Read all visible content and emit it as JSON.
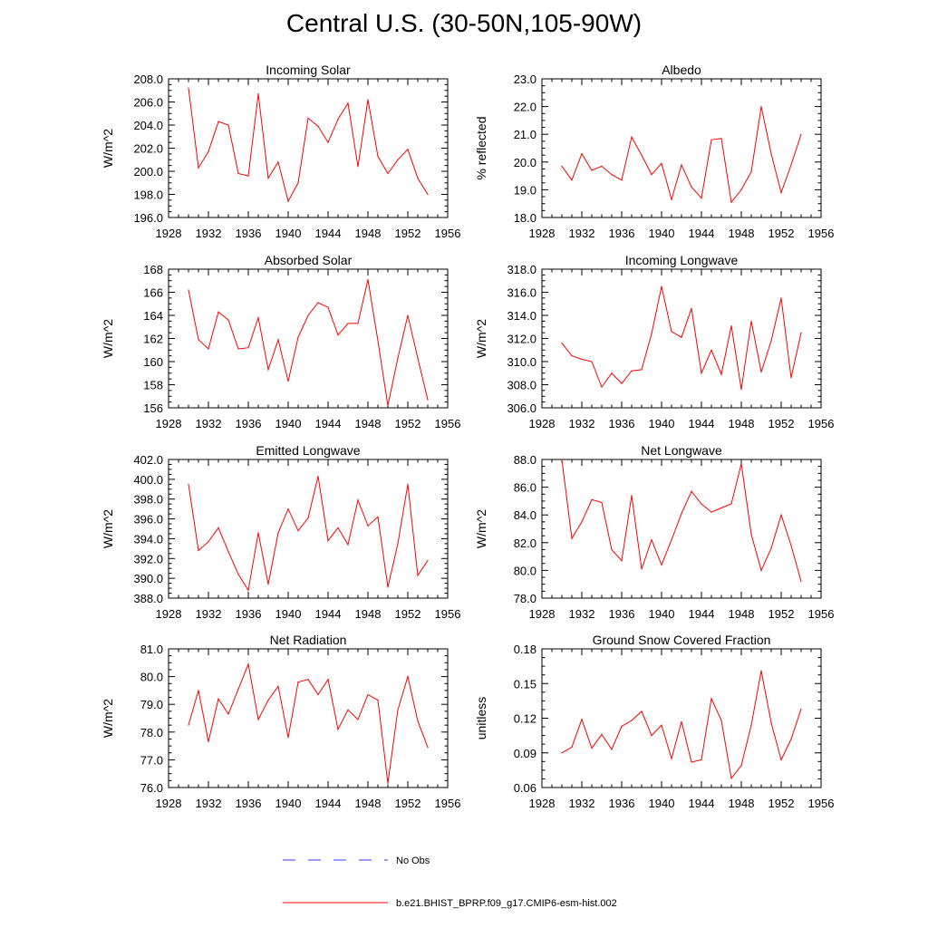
{
  "page_title": "Central U.S. (30-50N,105-90W)",
  "colors": {
    "model_line": "#ff0000",
    "obs_line": "#3a3aff",
    "axis": "#000000"
  },
  "legend": {
    "obs_label": "No Obs",
    "model_label": "b.e21.BHIST_BPRP.f09_g17.CMIP6-esm-hist.002"
  },
  "chart_data": [
    {
      "type": "line",
      "title": "Incoming Solar",
      "ylabel": "W/m^2",
      "xlabel": "",
      "xlim": [
        1928,
        1956
      ],
      "xticks": [
        1928,
        1932,
        1936,
        1940,
        1944,
        1948,
        1952,
        1956
      ],
      "ylim": [
        196,
        208
      ],
      "yticks": [
        196,
        198,
        200,
        202,
        204,
        206,
        208
      ],
      "ydecimals": 1,
      "x": [
        1930,
        1931,
        1932,
        1933,
        1934,
        1935,
        1936,
        1937,
        1938,
        1939,
        1940,
        1941,
        1942,
        1943,
        1944,
        1945,
        1946,
        1947,
        1948,
        1949,
        1950,
        1951,
        1952,
        1953,
        1954
      ],
      "series": [
        {
          "name": "b.e21.BHIST_BPRP.f09_g17.CMIP6-esm-hist.002",
          "values": [
            207.2,
            200.3,
            201.7,
            204.3,
            204.0,
            199.8,
            199.6,
            206.7,
            199.4,
            200.8,
            197.4,
            199.0,
            204.6,
            203.9,
            202.5,
            204.5,
            205.9,
            200.4,
            206.2,
            201.3,
            199.8,
            201.0,
            201.9,
            199.4,
            198.0
          ]
        }
      ]
    },
    {
      "type": "line",
      "title": "Albedo",
      "ylabel": "% reflected",
      "xlabel": "",
      "xlim": [
        1928,
        1956
      ],
      "xticks": [
        1928,
        1932,
        1936,
        1940,
        1944,
        1948,
        1952,
        1956
      ],
      "ylim": [
        18,
        23
      ],
      "yticks": [
        18,
        19,
        20,
        21,
        22,
        23
      ],
      "ydecimals": 1,
      "x": [
        1930,
        1931,
        1932,
        1933,
        1934,
        1935,
        1936,
        1937,
        1938,
        1939,
        1940,
        1941,
        1942,
        1943,
        1944,
        1945,
        1946,
        1947,
        1948,
        1949,
        1950,
        1951,
        1952,
        1953,
        1954
      ],
      "series": [
        {
          "name": "b.e21.BHIST_BPRP.f09_g17.CMIP6-esm-hist.002",
          "values": [
            19.85,
            19.35,
            20.3,
            19.7,
            19.85,
            19.55,
            19.35,
            20.9,
            20.25,
            19.55,
            19.95,
            18.65,
            19.9,
            19.1,
            18.7,
            20.8,
            20.85,
            18.55,
            19.0,
            19.65,
            22.0,
            20.3,
            18.9,
            19.9,
            21.0
          ]
        }
      ]
    },
    {
      "type": "line",
      "title": "Absorbed Solar",
      "ylabel": "W/m^2",
      "xlabel": "",
      "xlim": [
        1928,
        1956
      ],
      "xticks": [
        1928,
        1932,
        1936,
        1940,
        1944,
        1948,
        1952,
        1956
      ],
      "ylim": [
        156,
        168
      ],
      "yticks": [
        156,
        158,
        160,
        162,
        164,
        166,
        168
      ],
      "ydecimals": 0,
      "x": [
        1930,
        1931,
        1932,
        1933,
        1934,
        1935,
        1936,
        1937,
        1938,
        1939,
        1940,
        1941,
        1942,
        1943,
        1944,
        1945,
        1946,
        1947,
        1948,
        1949,
        1950,
        1951,
        1952,
        1953,
        1954
      ],
      "series": [
        {
          "name": "b.e21.BHIST_BPRP.f09_g17.CMIP6-esm-hist.002",
          "values": [
            166.2,
            161.9,
            161.1,
            164.3,
            163.6,
            161.1,
            161.2,
            163.8,
            159.3,
            161.9,
            158.3,
            162.1,
            164.0,
            165.1,
            164.7,
            162.3,
            163.3,
            163.3,
            167.1,
            161.8,
            156.2,
            160.3,
            164.0,
            160.3,
            156.7
          ]
        }
      ]
    },
    {
      "type": "line",
      "title": "Incoming Longwave",
      "ylabel": "W/m^2",
      "xlabel": "",
      "xlim": [
        1928,
        1956
      ],
      "xticks": [
        1928,
        1932,
        1936,
        1940,
        1944,
        1948,
        1952,
        1956
      ],
      "ylim": [
        306,
        318
      ],
      "yticks": [
        306,
        308,
        310,
        312,
        314,
        316,
        318
      ],
      "ydecimals": 1,
      "x": [
        1930,
        1931,
        1932,
        1933,
        1934,
        1935,
        1936,
        1937,
        1938,
        1939,
        1940,
        1941,
        1942,
        1943,
        1944,
        1945,
        1946,
        1947,
        1948,
        1949,
        1950,
        1951,
        1952,
        1953,
        1954
      ],
      "series": [
        {
          "name": "b.e21.BHIST_BPRP.f09_g17.CMIP6-esm-hist.002",
          "values": [
            311.6,
            310.5,
            310.2,
            310.0,
            307.8,
            309.0,
            308.1,
            309.2,
            309.3,
            312.4,
            316.5,
            312.6,
            312.1,
            314.6,
            309.0,
            311.0,
            308.9,
            313.1,
            307.6,
            313.5,
            309.1,
            311.8,
            315.5,
            308.6,
            312.5
          ]
        }
      ]
    },
    {
      "type": "line",
      "title": "Emitted Longwave",
      "ylabel": "W/m^2",
      "xlabel": "",
      "xlim": [
        1928,
        1956
      ],
      "xticks": [
        1928,
        1932,
        1936,
        1940,
        1944,
        1948,
        1952,
        1956
      ],
      "ylim": [
        388,
        402
      ],
      "yticks": [
        388,
        390,
        392,
        394,
        396,
        398,
        400,
        402
      ],
      "ydecimals": 1,
      "x": [
        1930,
        1931,
        1932,
        1933,
        1934,
        1935,
        1936,
        1937,
        1938,
        1939,
        1940,
        1941,
        1942,
        1943,
        1944,
        1945,
        1946,
        1947,
        1948,
        1949,
        1950,
        1951,
        1952,
        1953,
        1954
      ],
      "series": [
        {
          "name": "b.e21.BHIST_BPRP.f09_g17.CMIP6-esm-hist.002",
          "values": [
            399.5,
            392.8,
            393.7,
            395.1,
            392.7,
            390.4,
            388.8,
            394.6,
            389.4,
            394.6,
            397.0,
            394.8,
            396.1,
            400.3,
            393.8,
            395.1,
            393.4,
            397.9,
            395.3,
            396.2,
            389.1,
            393.5,
            399.5,
            390.3,
            391.8
          ]
        }
      ]
    },
    {
      "type": "line",
      "title": "Net Longwave",
      "ylabel": "W/m^2",
      "xlabel": "",
      "xlim": [
        1928,
        1956
      ],
      "xticks": [
        1928,
        1932,
        1936,
        1940,
        1944,
        1948,
        1952,
        1956
      ],
      "ylim": [
        78,
        88
      ],
      "yticks": [
        78,
        80,
        82,
        84,
        86,
        88
      ],
      "ydecimals": 1,
      "x": [
        1930,
        1931,
        1932,
        1933,
        1934,
        1935,
        1936,
        1937,
        1938,
        1939,
        1940,
        1941,
        1942,
        1943,
        1944,
        1945,
        1946,
        1947,
        1948,
        1949,
        1950,
        1951,
        1952,
        1953,
        1954
      ],
      "series": [
        {
          "name": "b.e21.BHIST_BPRP.f09_g17.CMIP6-esm-hist.002",
          "values": [
            88.0,
            82.3,
            83.5,
            85.1,
            84.9,
            81.5,
            80.7,
            85.4,
            80.1,
            82.2,
            80.4,
            82.2,
            84.1,
            85.7,
            84.8,
            84.2,
            84.5,
            84.8,
            87.7,
            82.6,
            80.0,
            81.6,
            84.0,
            81.8,
            79.2
          ]
        }
      ]
    },
    {
      "type": "line",
      "title": "Net Radiation",
      "ylabel": "W/m^2",
      "xlabel": "",
      "xlim": [
        1928,
        1956
      ],
      "xticks": [
        1928,
        1932,
        1936,
        1940,
        1944,
        1948,
        1952,
        1956
      ],
      "ylim": [
        76,
        81
      ],
      "yticks": [
        76,
        77,
        78,
        79,
        80,
        81
      ],
      "ydecimals": 1,
      "x": [
        1930,
        1931,
        1932,
        1933,
        1934,
        1935,
        1936,
        1937,
        1938,
        1939,
        1940,
        1941,
        1942,
        1943,
        1944,
        1945,
        1946,
        1947,
        1948,
        1949,
        1950,
        1951,
        1952,
        1953,
        1954
      ],
      "series": [
        {
          "name": "b.e21.BHIST_BPRP.f09_g17.CMIP6-esm-hist.002",
          "values": [
            78.25,
            79.5,
            77.65,
            79.2,
            78.65,
            79.55,
            80.45,
            78.45,
            79.15,
            79.65,
            77.8,
            79.8,
            79.9,
            79.35,
            79.9,
            78.1,
            78.8,
            78.45,
            79.35,
            79.15,
            76.15,
            78.8,
            80.0,
            78.4,
            77.45
          ]
        }
      ]
    },
    {
      "type": "line",
      "title": "Ground Snow Covered Fraction",
      "ylabel": "unitless",
      "xlabel": "",
      "xlim": [
        1928,
        1956
      ],
      "xticks": [
        1928,
        1932,
        1936,
        1940,
        1944,
        1948,
        1952,
        1956
      ],
      "ylim": [
        0.06,
        0.18
      ],
      "yticks": [
        0.06,
        0.09,
        0.12,
        0.15,
        0.18
      ],
      "ydecimals": 2,
      "x": [
        1930,
        1931,
        1932,
        1933,
        1934,
        1935,
        1936,
        1937,
        1938,
        1939,
        1940,
        1941,
        1942,
        1943,
        1944,
        1945,
        1946,
        1947,
        1948,
        1949,
        1950,
        1951,
        1952,
        1953,
        1954
      ],
      "series": [
        {
          "name": "b.e21.BHIST_BPRP.f09_g17.CMIP6-esm-hist.002",
          "values": [
            0.09,
            0.095,
            0.119,
            0.094,
            0.106,
            0.093,
            0.113,
            0.118,
            0.126,
            0.105,
            0.114,
            0.085,
            0.117,
            0.082,
            0.084,
            0.137,
            0.118,
            0.068,
            0.079,
            0.114,
            0.161,
            0.116,
            0.084,
            0.102,
            0.128
          ]
        }
      ]
    }
  ]
}
